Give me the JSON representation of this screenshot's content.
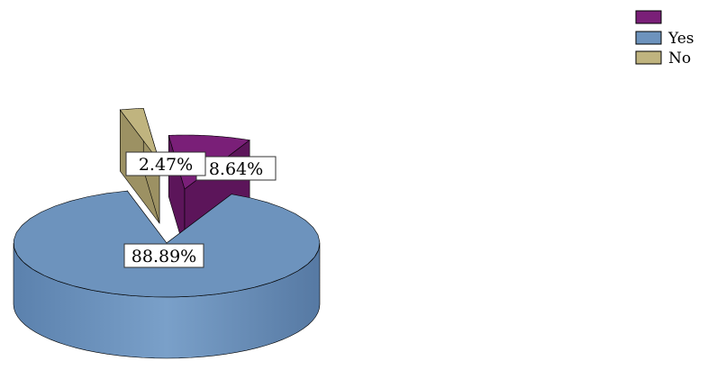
{
  "chart_data": {
    "type": "pie",
    "style": "3d-exploded",
    "legend_position": "top-right",
    "slices": [
      {
        "label": "",
        "value": 8.64,
        "display": "8.64%",
        "color": "#7a1f78",
        "side_color": "#5c155a"
      },
      {
        "label": "Yes",
        "value": 88.89,
        "display": "88.89%",
        "color": "#6d93bd",
        "side_color": "#5a80aa"
      },
      {
        "label": "No",
        "value": 2.47,
        "display": "2.47%",
        "color": "#c0b47f",
        "side_color": "#9c9163"
      }
    ]
  }
}
